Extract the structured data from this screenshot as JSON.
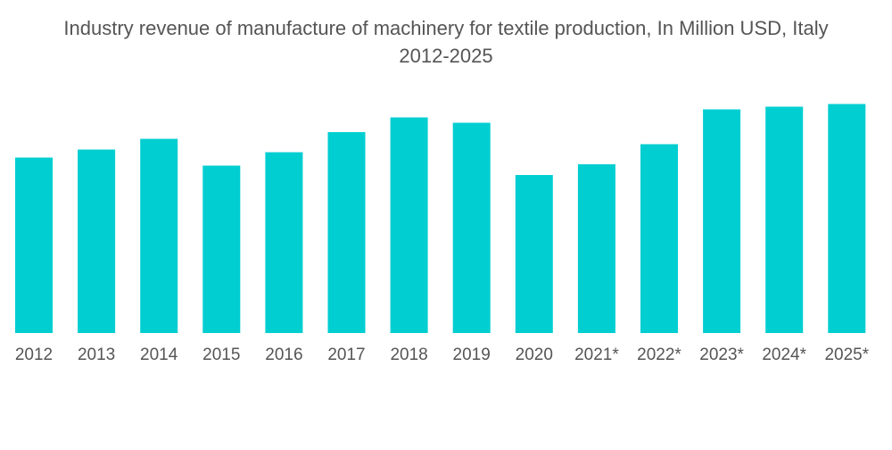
{
  "chart_data": {
    "type": "bar",
    "title": "Industry revenue of manufacture of machinery for textile production, In Million USD, Italy",
    "subtitle": "2012-2025",
    "xlabel": "",
    "ylabel": "",
    "categories": [
      "2012",
      "2013",
      "2014",
      "2015",
      "2016",
      "2017",
      "2018",
      "2019",
      "2020",
      "2021*",
      "2022*",
      "2023*",
      "2024*",
      "2025*"
    ],
    "values": [
      131,
      137,
      145,
      125,
      135,
      150,
      161,
      157,
      118,
      126,
      141,
      167,
      169,
      171
    ],
    "ylim": [
      0,
      200
    ],
    "grid": false,
    "legend": "none",
    "bar_color": "#00CED1"
  }
}
